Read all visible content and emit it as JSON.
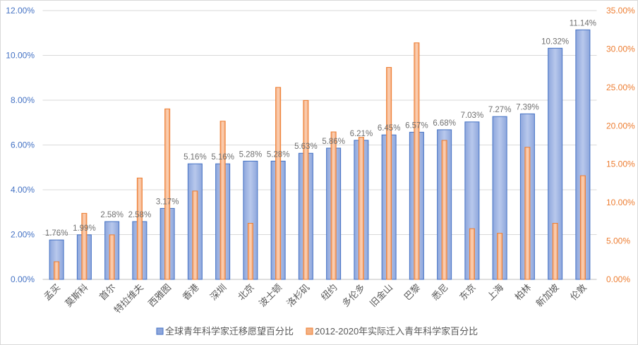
{
  "chart_data": {
    "type": "bar",
    "categories": [
      "孟买",
      "莫斯科",
      "首尔",
      "特拉维夫",
      "西雅图",
      "香港",
      "深圳",
      "北京",
      "波士顿",
      "洛杉矶",
      "纽约",
      "多伦多",
      "旧金山",
      "巴黎",
      "悉尼",
      "东京",
      "上海",
      "柏林",
      "新加坡",
      "伦敦"
    ],
    "series": [
      {
        "name": "全球青年科学家迁移愿望百分比",
        "axis": "left",
        "color": "#4472c4",
        "values": [
          1.76,
          1.99,
          2.58,
          2.58,
          3.17,
          5.16,
          5.16,
          5.28,
          5.28,
          5.63,
          5.86,
          6.21,
          6.45,
          6.57,
          6.68,
          7.03,
          7.27,
          7.39,
          10.32,
          11.14
        ],
        "labels": [
          "1.76%",
          "1.99%",
          "2.58%",
          "2.58%",
          "3.17%",
          "5.16%",
          "5.16%",
          "5.28%",
          "5.28%",
          "5.63%",
          "5.86%",
          "6.21%",
          "6.45%",
          "6.57%",
          "6.68%",
          "7.03%",
          "7.27%",
          "7.39%",
          "10.32%",
          "11.14%"
        ]
      },
      {
        "name": "2012-2020年实际迁入青年科学家百分比",
        "axis": "right",
        "color": "#ed7d31",
        "values": [
          2.3,
          8.6,
          5.8,
          13.2,
          22.2,
          11.5,
          20.6,
          7.3,
          25.0,
          23.3,
          19.2,
          18.5,
          27.6,
          30.8,
          18.1,
          6.6,
          6.0,
          17.2,
          7.3,
          13.5
        ]
      }
    ],
    "y_left": {
      "range": [
        0,
        12
      ],
      "ticks": [
        "0.00%",
        "2.00%",
        "4.00%",
        "6.00%",
        "8.00%",
        "10.00%",
        "12.00%"
      ],
      "color": "#4472c4"
    },
    "y_right": {
      "range": [
        0,
        35
      ],
      "ticks": [
        "0.00%",
        "5.00%",
        "10.00%",
        "15.00%",
        "20.00%",
        "25.00%",
        "30.00%",
        "35.00%"
      ],
      "color": "#ed7d31"
    },
    "grid": true,
    "legend": "bottom"
  }
}
